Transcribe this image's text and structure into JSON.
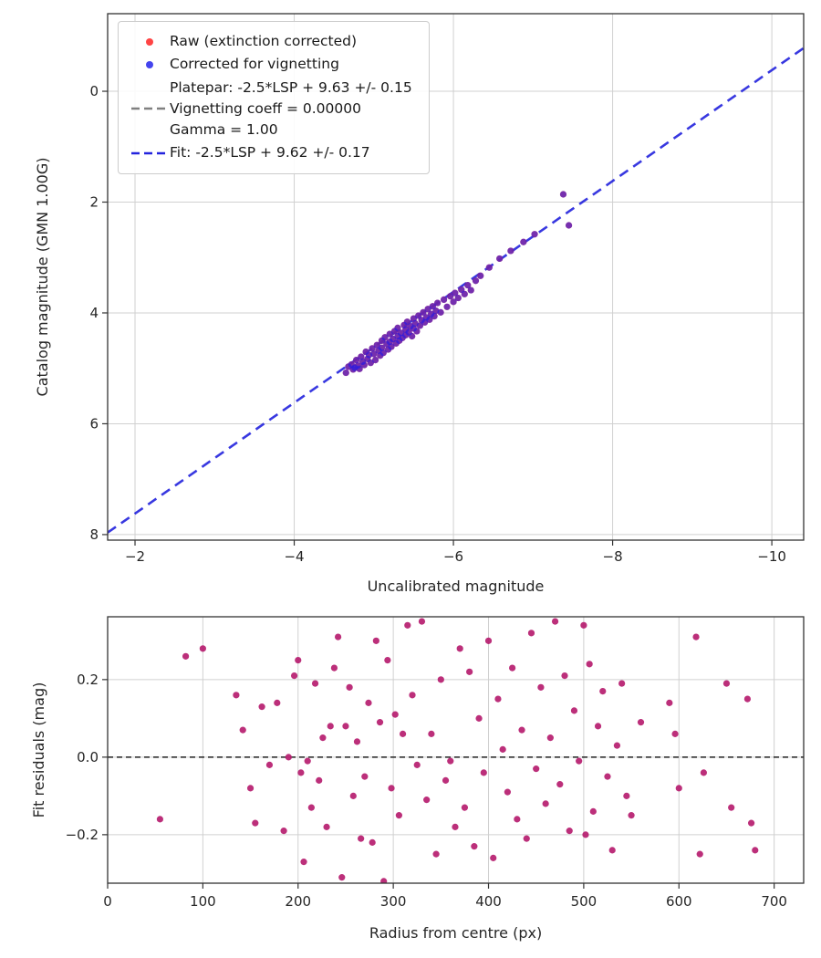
{
  "figure": {
    "background": "#ffffff",
    "text_color": "#262626",
    "grid_color": "#d0d0d0",
    "spine_color": "#333333"
  },
  "chart_data": [
    {
      "type": "scatter",
      "name": "magnitude-calibration",
      "xlabel": "Uncalibrated magnitude",
      "ylabel": "Catalog magnitude (GMN 1.00G)",
      "xlim": [
        -1.656,
        -10.4
      ],
      "ylim": [
        -1.4,
        8.1
      ],
      "x_inverted": true,
      "y_inverted": true,
      "grid": true,
      "xtick_values": [
        -2,
        -4,
        -6,
        -8,
        -10
      ],
      "xtick_labels": [
        "−2",
        "−4",
        "−6",
        "−8",
        "−10"
      ],
      "ytick_values": [
        0,
        2,
        4,
        6,
        8
      ],
      "ytick_labels": [
        "0",
        "2",
        "4",
        "6",
        "8"
      ],
      "series": [
        {
          "name": "Raw (extinction corrected)",
          "color": "#ff3333",
          "opacity": 0.85
        },
        {
          "name": "Corrected for vignetting",
          "color": "#1a1aee",
          "opacity": 0.6
        }
      ],
      "points": [
        [
          -4.65,
          5.08
        ],
        [
          -4.68,
          4.97
        ],
        [
          -4.72,
          4.93
        ],
        [
          -4.74,
          5.02
        ],
        [
          -4.76,
          4.99
        ],
        [
          -4.78,
          4.85
        ],
        [
          -4.8,
          4.95
        ],
        [
          -4.82,
          5.01
        ],
        [
          -4.84,
          4.79
        ],
        [
          -4.86,
          4.88
        ],
        [
          -4.88,
          4.94
        ],
        [
          -4.9,
          4.7
        ],
        [
          -4.92,
          4.83
        ],
        [
          -4.94,
          4.76
        ],
        [
          -4.96,
          4.9
        ],
        [
          -4.98,
          4.64
        ],
        [
          -5.0,
          4.74
        ],
        [
          -5.02,
          4.85
        ],
        [
          -5.04,
          4.58
        ],
        [
          -5.06,
          4.68
        ],
        [
          -5.08,
          4.77
        ],
        [
          -5.1,
          4.5
        ],
        [
          -5.1,
          4.63
        ],
        [
          -5.12,
          4.72
        ],
        [
          -5.14,
          4.44
        ],
        [
          -5.16,
          4.56
        ],
        [
          -5.18,
          4.66
        ],
        [
          -5.2,
          4.38
        ],
        [
          -5.2,
          4.52
        ],
        [
          -5.22,
          4.61
        ],
        [
          -5.24,
          4.47
        ],
        [
          -5.26,
          4.33
        ],
        [
          -5.28,
          4.55
        ],
        [
          -5.3,
          4.42
        ],
        [
          -5.3,
          4.27
        ],
        [
          -5.32,
          4.5
        ],
        [
          -5.34,
          4.36
        ],
        [
          -5.36,
          4.45
        ],
        [
          -5.38,
          4.22
        ],
        [
          -5.4,
          4.4
        ],
        [
          -5.4,
          4.3
        ],
        [
          -5.42,
          4.16
        ],
        [
          -5.44,
          4.35
        ],
        [
          -5.46,
          4.24
        ],
        [
          -5.48,
          4.42
        ],
        [
          -5.5,
          4.1
        ],
        [
          -5.5,
          4.28
        ],
        [
          -5.52,
          4.19
        ],
        [
          -5.54,
          4.33
        ],
        [
          -5.56,
          4.05
        ],
        [
          -5.58,
          4.23
        ],
        [
          -5.6,
          4.13
        ],
        [
          -5.62,
          3.99
        ],
        [
          -5.64,
          4.17
        ],
        [
          -5.66,
          4.08
        ],
        [
          -5.68,
          3.93
        ],
        [
          -5.7,
          4.12
        ],
        [
          -5.72,
          4.02
        ],
        [
          -5.74,
          3.88
        ],
        [
          -5.76,
          4.06
        ],
        [
          -5.78,
          3.96
        ],
        [
          -5.8,
          3.82
        ],
        [
          -5.84,
          3.99
        ],
        [
          -5.88,
          3.76
        ],
        [
          -5.92,
          3.89
        ],
        [
          -5.96,
          3.7
        ],
        [
          -6.0,
          3.8
        ],
        [
          -6.02,
          3.64
        ],
        [
          -6.06,
          3.73
        ],
        [
          -6.1,
          3.58
        ],
        [
          -6.14,
          3.66
        ],
        [
          -6.18,
          3.5
        ],
        [
          -6.22,
          3.59
        ],
        [
          -6.28,
          3.42
        ],
        [
          -6.34,
          3.33
        ],
        [
          -6.45,
          3.18
        ],
        [
          -6.58,
          3.02
        ],
        [
          -6.72,
          2.88
        ],
        [
          -6.88,
          2.72
        ],
        [
          -7.02,
          2.58
        ],
        [
          -7.38,
          1.86
        ],
        [
          -7.45,
          2.42
        ]
      ],
      "fit_line": {
        "label": "Fit: -2.5*LSP + 9.62 +/- 0.17",
        "slope": 1.0,
        "intercept": 9.62,
        "color": "#2323dd",
        "dash": "11 7",
        "width": 2.6,
        "opacity": 0.9
      },
      "legend": {
        "position": "upper-left",
        "entries": [
          {
            "id": "raw",
            "marker": "dot",
            "color": "#ff4444",
            "text": "Raw (extinction corrected)"
          },
          {
            "id": "corrected",
            "marker": "dot",
            "color": "#4444ee",
            "text": "Corrected for vignetting"
          },
          {
            "id": "platepar",
            "marker": "dash",
            "color": "#808080",
            "text": "Platepar: -2.5*LSP + 9.63 +/- 0.15\nVignetting coeff = 0.00000\nGamma = 1.00"
          },
          {
            "id": "fit",
            "marker": "dash",
            "color": "#2323dd",
            "text": "Fit: -2.5*LSP + 9.62 +/- 0.17"
          }
        ]
      }
    },
    {
      "type": "scatter",
      "name": "fit-residuals",
      "xlabel": "Radius from centre (px)",
      "ylabel": "Fit residuals (mag)",
      "xlim": [
        0,
        731
      ],
      "ylim": [
        0.362,
        -0.325
      ],
      "grid": true,
      "xtick_values": [
        0,
        100,
        200,
        300,
        400,
        500,
        600,
        700
      ],
      "xtick_labels": [
        "0",
        "100",
        "200",
        "300",
        "400",
        "500",
        "600",
        "700"
      ],
      "ytick_values": [
        -0.2,
        0.0,
        0.2
      ],
      "ytick_labels": [
        "−0.2",
        "0.0",
        "0.2"
      ],
      "marker_color": "#b5186c",
      "marker_opacity": 0.9,
      "zero_line": {
        "y": 0.0,
        "color": "#222222",
        "dash": "6 4",
        "width": 1.6
      },
      "points": [
        [
          55,
          -0.16
        ],
        [
          82,
          0.26
        ],
        [
          100,
          0.28
        ],
        [
          135,
          0.16
        ],
        [
          142,
          0.07
        ],
        [
          150,
          -0.08
        ],
        [
          155,
          -0.17
        ],
        [
          162,
          0.13
        ],
        [
          170,
          -0.02
        ],
        [
          178,
          0.14
        ],
        [
          185,
          -0.19
        ],
        [
          190,
          0.0
        ],
        [
          196,
          0.21
        ],
        [
          200,
          0.25
        ],
        [
          203,
          -0.04
        ],
        [
          206,
          -0.27
        ],
        [
          210,
          -0.01
        ],
        [
          214,
          -0.13
        ],
        [
          218,
          0.19
        ],
        [
          222,
          -0.06
        ],
        [
          226,
          0.05
        ],
        [
          230,
          -0.18
        ],
        [
          234,
          0.08
        ],
        [
          238,
          0.23
        ],
        [
          242,
          0.31
        ],
        [
          246,
          -0.31
        ],
        [
          250,
          0.08
        ],
        [
          254,
          0.18
        ],
        [
          258,
          -0.1
        ],
        [
          262,
          0.04
        ],
        [
          266,
          -0.21
        ],
        [
          270,
          -0.05
        ],
        [
          274,
          0.14
        ],
        [
          278,
          -0.22
        ],
        [
          282,
          0.3
        ],
        [
          286,
          0.09
        ],
        [
          290,
          -0.32
        ],
        [
          294,
          0.25
        ],
        [
          298,
          -0.08
        ],
        [
          302,
          0.11
        ],
        [
          306,
          -0.15
        ],
        [
          310,
          0.06
        ],
        [
          315,
          0.34
        ],
        [
          320,
          0.16
        ],
        [
          325,
          -0.02
        ],
        [
          330,
          0.35
        ],
        [
          335,
          -0.11
        ],
        [
          340,
          0.06
        ],
        [
          345,
          -0.25
        ],
        [
          350,
          0.2
        ],
        [
          355,
          -0.06
        ],
        [
          360,
          -0.01
        ],
        [
          365,
          -0.18
        ],
        [
          370,
          0.28
        ],
        [
          375,
          -0.13
        ],
        [
          380,
          0.22
        ],
        [
          385,
          -0.23
        ],
        [
          390,
          0.1
        ],
        [
          395,
          -0.04
        ],
        [
          400,
          0.3
        ],
        [
          405,
          -0.26
        ],
        [
          410,
          0.15
        ],
        [
          415,
          0.02
        ],
        [
          420,
          -0.09
        ],
        [
          425,
          0.23
        ],
        [
          430,
          -0.16
        ],
        [
          435,
          0.07
        ],
        [
          440,
          -0.21
        ],
        [
          445,
          0.32
        ],
        [
          450,
          -0.03
        ],
        [
          455,
          0.18
        ],
        [
          460,
          -0.12
        ],
        [
          465,
          0.05
        ],
        [
          470,
          0.35
        ],
        [
          475,
          -0.07
        ],
        [
          480,
          0.21
        ],
        [
          485,
          -0.19
        ],
        [
          490,
          0.12
        ],
        [
          495,
          -0.01
        ],
        [
          500,
          0.34
        ],
        [
          502,
          -0.2
        ],
        [
          506,
          0.24
        ],
        [
          510,
          -0.14
        ],
        [
          515,
          0.08
        ],
        [
          520,
          0.17
        ],
        [
          525,
          -0.05
        ],
        [
          530,
          -0.24
        ],
        [
          535,
          0.03
        ],
        [
          540,
          0.19
        ],
        [
          545,
          -0.1
        ],
        [
          550,
          -0.15
        ],
        [
          560,
          0.09
        ],
        [
          590,
          0.14
        ],
        [
          596,
          0.06
        ],
        [
          600,
          -0.08
        ],
        [
          618,
          0.31
        ],
        [
          622,
          -0.25
        ],
        [
          626,
          -0.04
        ],
        [
          650,
          0.19
        ],
        [
          655,
          -0.13
        ],
        [
          672,
          0.15
        ],
        [
          676,
          -0.17
        ],
        [
          680,
          -0.24
        ]
      ]
    }
  ]
}
